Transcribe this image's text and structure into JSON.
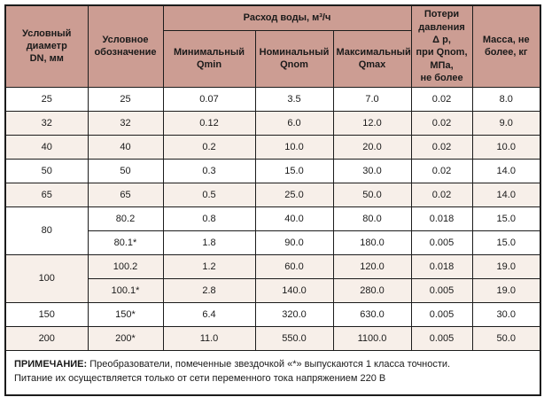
{
  "colors": {
    "header_bg": "#cc9d93",
    "stripe_bg": "#f7efe9",
    "row_bg": "#ffffff",
    "border": "#1c1c1c",
    "text": "#1a1a1a"
  },
  "header": {
    "dn": "Условный\nдиаметр\nDN, мм",
    "designation": "Условное\nобозначение",
    "flow_group": "Расход воды, м³/ч",
    "qmin": "Минимальный\nQmin",
    "qnom": "Номинальный\nQnom",
    "qmax": "Максимальный\nQmax",
    "pressure_loss": "Потери\nдавления\nΔ p,\nпри Qnom,\nМПа,\nне более",
    "mass": "Масса, не\nболее, кг"
  },
  "rows": [
    {
      "dn": "25",
      "code": "25",
      "qmin": "0.07",
      "qnom": "3.5",
      "qmax": "7.0",
      "dp": "0.02",
      "mass": "8.0"
    },
    {
      "dn": "32",
      "code": "32",
      "qmin": "0.12",
      "qnom": "6.0",
      "qmax": "12.0",
      "dp": "0.02",
      "mass": "9.0"
    },
    {
      "dn": "40",
      "code": "40",
      "qmin": "0.2",
      "qnom": "10.0",
      "qmax": "20.0",
      "dp": "0.02",
      "mass": "10.0"
    },
    {
      "dn": "50",
      "code": "50",
      "qmin": "0.3",
      "qnom": "15.0",
      "qmax": "30.0",
      "dp": "0.02",
      "mass": "14.0"
    },
    {
      "dn": "65",
      "code": "65",
      "qmin": "0.5",
      "qnom": "25.0",
      "qmax": "50.0",
      "dp": "0.02",
      "mass": "14.0"
    },
    {
      "dn": "80",
      "code": "80.2",
      "qmin": "0.8",
      "qnom": "40.0",
      "qmax": "80.0",
      "dp": "0.018",
      "mass": "15.0"
    },
    {
      "code": "80.1*",
      "qmin": "1.8",
      "qnom": "90.0",
      "qmax": "180.0",
      "dp": "0.005",
      "mass": "15.0"
    },
    {
      "dn": "100",
      "code": "100.2",
      "qmin": "1.2",
      "qnom": "60.0",
      "qmax": "120.0",
      "dp": "0.018",
      "mass": "19.0"
    },
    {
      "code": "100.1*",
      "qmin": "2.8",
      "qnom": "140.0",
      "qmax": "280.0",
      "dp": "0.005",
      "mass": "19.0"
    },
    {
      "dn": "150",
      "code": "150*",
      "qmin": "6.4",
      "qnom": "320.0",
      "qmax": "630.0",
      "dp": "0.005",
      "mass": "30.0"
    },
    {
      "dn": "200",
      "code": "200*",
      "qmin": "11.0",
      "qnom": "550.0",
      "qmax": "1100.0",
      "dp": "0.005",
      "mass": "50.0"
    }
  ],
  "note": {
    "label": "ПРИМЕЧАНИЕ:",
    "line1": " Преобразователи, помеченные звездочкой «*» выпускаются 1 класса точности.",
    "line2": "Питание их осуществляется только от сети переменного тока напряжением 220 В"
  }
}
